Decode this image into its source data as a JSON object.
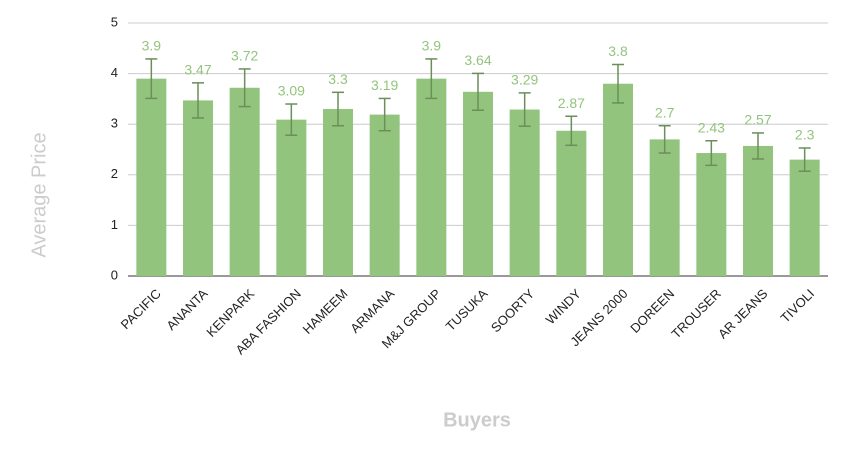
{
  "chart_data": {
    "type": "bar",
    "x_label": "Buyers",
    "y_label": "Average Price",
    "categories": [
      "PACIFIC",
      "ANANTA",
      "KENPARK",
      "ABA FASHION",
      "HAMEEM",
      "ARMANA",
      "M&J GROUP",
      "TUSUKA",
      "SOORTY",
      "WINDY",
      "JEANS 2000",
      "DOREEN",
      "TROUSER",
      "AR JEANS",
      "TIVOLI"
    ],
    "values": [
      3.9,
      3.47,
      3.72,
      3.09,
      3.3,
      3.19,
      3.9,
      3.64,
      3.29,
      2.87,
      3.8,
      2.7,
      2.43,
      2.57,
      2.3
    ],
    "errors": [
      0.39,
      0.347,
      0.372,
      0.309,
      0.33,
      0.319,
      0.39,
      0.364,
      0.329,
      0.287,
      0.38,
      0.27,
      0.243,
      0.257,
      0.23
    ],
    "color": "#93c47d",
    "error_color": "#6b8e5a",
    "ylim": [
      0,
      5
    ],
    "yticks": [
      0,
      1,
      2,
      3,
      4,
      5
    ],
    "grid": true
  }
}
